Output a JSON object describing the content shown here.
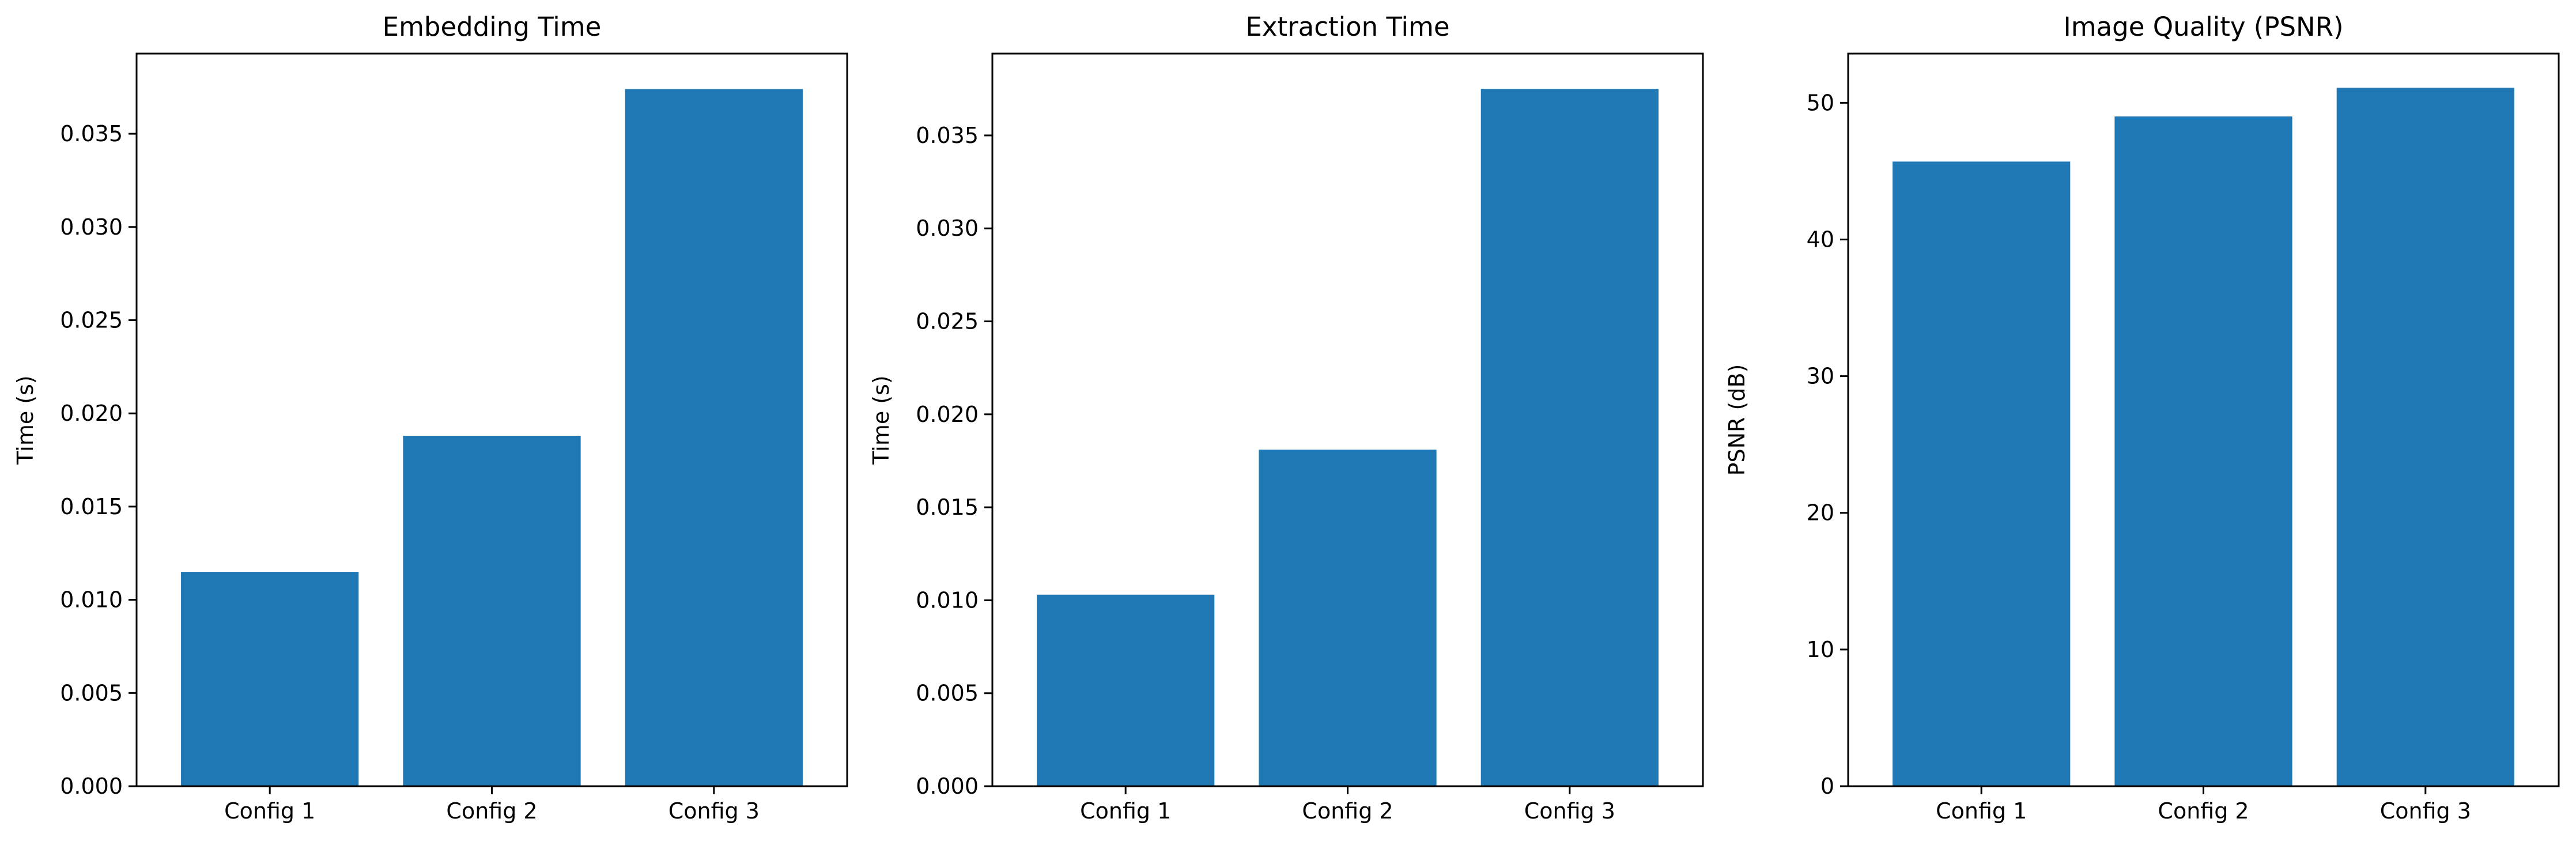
{
  "colors": {
    "bar": "#1f77b4",
    "axes": "#000000",
    "background": "#ffffff"
  },
  "chart_data": [
    {
      "type": "bar",
      "title": "Embedding Time",
      "xlabel": "",
      "ylabel": "Time (s)",
      "categories": [
        "Config 1",
        "Config 2",
        "Config 3"
      ],
      "values": [
        0.0115,
        0.0188,
        0.0374
      ],
      "ylim": [
        0,
        0.0393
      ],
      "yticks": [
        0.0,
        0.005,
        0.01,
        0.015,
        0.02,
        0.025,
        0.03,
        0.035
      ],
      "ytick_labels": [
        "0.000",
        "0.005",
        "0.010",
        "0.015",
        "0.020",
        "0.025",
        "0.030",
        "0.035"
      ],
      "grid": false,
      "legend": "none"
    },
    {
      "type": "bar",
      "title": "Extraction Time",
      "xlabel": "",
      "ylabel": "Time (s)",
      "categories": [
        "Config 1",
        "Config 2",
        "Config 3"
      ],
      "values": [
        0.0103,
        0.0181,
        0.0375
      ],
      "ylim": [
        0,
        0.0394
      ],
      "yticks": [
        0.0,
        0.005,
        0.01,
        0.015,
        0.02,
        0.025,
        0.03,
        0.035
      ],
      "ytick_labels": [
        "0.000",
        "0.005",
        "0.010",
        "0.015",
        "0.020",
        "0.025",
        "0.030",
        "0.035"
      ],
      "grid": false,
      "legend": "none"
    },
    {
      "type": "bar",
      "title": "Image Quality (PSNR)",
      "xlabel": "",
      "ylabel": "PSNR (dB)",
      "categories": [
        "Config 1",
        "Config 2",
        "Config 3"
      ],
      "values": [
        45.7,
        49.0,
        51.1
      ],
      "ylim": [
        0,
        53.6
      ],
      "yticks": [
        0,
        10,
        20,
        30,
        40,
        50
      ],
      "ytick_labels": [
        "0",
        "10",
        "20",
        "30",
        "40",
        "50"
      ],
      "grid": false,
      "legend": "none"
    }
  ]
}
